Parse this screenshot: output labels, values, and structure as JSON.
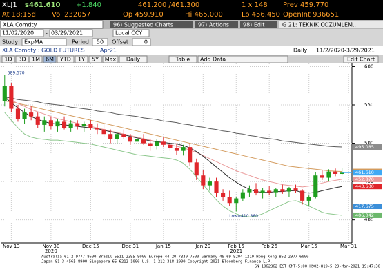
{
  "quote": {
    "ticker": "XLJ1",
    "last": "s461.610",
    "change": "+1.840",
    "bid_ask": "461.200 /461.300",
    "size": "1 x 148",
    "prev": "Prev 459.770",
    "time": "At 18:15d",
    "vol": "Vol 232057",
    "open": "Op 459.910",
    "high": "Hi 465.000",
    "low": "Lo 456.450",
    "open_interest": "OpenInt 936651"
  },
  "toolbar": {
    "security": "XLA Comdty",
    "suggested": "96) Suggested Charts",
    "actions": "97) Actions",
    "edit": "98) Edit",
    "window": "G 21: TEKNIK COZUMLEM..."
  },
  "range": {
    "start": "11/02/2020",
    "dash": "-",
    "end": "03/29/2021",
    "currency": "Local CCY"
  },
  "study": {
    "label": "Study",
    "name": "ExpMA",
    "period_label": "Period",
    "period": "50",
    "offset_label": "Offset",
    "offset": "0"
  },
  "chart_header": {
    "security": "XLA Comdty : GOLD FUTURES",
    "contract": "Apr21",
    "frequency": "Daily",
    "dates": "11/2/2020-3/29/2021"
  },
  "buttons": [
    "1D",
    "3D",
    "1M",
    "6M",
    "YTD",
    "1Y",
    "5Y",
    "Max",
    "Daily",
    "Table",
    "Add Data",
    "Edit Chart"
  ],
  "chart_data": {
    "type": "candlestick",
    "categories": [
      null,
      "Nov 13",
      null,
      null,
      null,
      null,
      null,
      "Nov 30",
      null,
      null,
      null,
      null,
      null,
      "Dec 15",
      null,
      null,
      null,
      null,
      null,
      "Dec 31",
      null,
      null,
      null,
      null,
      "Jan 15",
      null,
      null,
      null,
      null,
      null,
      "Jan 29",
      null,
      null,
      null,
      null,
      "Feb 15",
      null,
      null,
      null,
      null,
      "Feb 26",
      null,
      null,
      null,
      null,
      null,
      "Mar 15",
      null,
      null,
      null,
      null,
      null,
      "Mar 31"
    ],
    "years": [
      "2020",
      "2021"
    ],
    "open": [
      555,
      575,
      545,
      532,
      540,
      535,
      524,
      530,
      522,
      528,
      520,
      526,
      522,
      525,
      520,
      518,
      512,
      505,
      512,
      508,
      502,
      505,
      500,
      496,
      502,
      498,
      494,
      490,
      495,
      475,
      458,
      445,
      450,
      435,
      430,
      422,
      428,
      436,
      440,
      435,
      438,
      436,
      440,
      437,
      441,
      438,
      425,
      430,
      458,
      455,
      463,
      460,
      null
    ],
    "high": [
      589.57,
      578,
      550,
      545,
      548,
      540,
      535,
      534,
      532,
      535,
      530,
      530,
      528,
      530,
      526,
      525,
      518,
      515,
      518,
      512,
      510,
      512,
      506,
      505,
      508,
      504,
      500,
      498,
      500,
      480,
      465,
      455,
      455,
      440,
      438,
      430,
      440,
      445,
      448,
      442,
      444,
      442,
      446,
      443,
      446,
      440,
      432,
      462,
      465,
      466,
      467,
      468,
      null
    ],
    "low": [
      548,
      540,
      528,
      525,
      530,
      520,
      515,
      518,
      515,
      518,
      515,
      518,
      515,
      517,
      512,
      508,
      500,
      500,
      505,
      498,
      495,
      498,
      490,
      492,
      495,
      490,
      485,
      484,
      470,
      452,
      440,
      438,
      430,
      425,
      418,
      410.86,
      424,
      430,
      432,
      428,
      432,
      430,
      434,
      430,
      435,
      420,
      418,
      428,
      452,
      450,
      457,
      458,
      null
    ],
    "close": [
      575,
      545,
      532,
      540,
      535,
      524,
      530,
      522,
      528,
      520,
      526,
      522,
      525,
      520,
      518,
      512,
      505,
      512,
      508,
      502,
      505,
      500,
      496,
      502,
      498,
      494,
      490,
      495,
      475,
      458,
      445,
      450,
      435,
      430,
      422,
      428,
      436,
      440,
      435,
      438,
      436,
      440,
      437,
      441,
      438,
      425,
      430,
      458,
      455,
      463,
      460,
      461.61,
      null
    ],
    "up_color": "#1f9e1f",
    "down_color": "#e0262b",
    "series": [
      {
        "color": "#5a5a5a",
        "values": [
          560,
          559,
          557,
          556,
          555,
          554,
          552,
          551,
          550,
          549,
          547,
          546,
          545,
          544,
          542,
          541,
          540,
          538,
          537,
          536,
          535,
          533,
          532,
          531,
          529,
          528,
          527,
          525,
          524,
          522,
          521,
          519,
          518,
          516,
          515,
          513,
          512,
          510,
          509,
          507,
          506,
          505,
          503,
          502,
          501,
          500,
          499,
          498,
          497,
          496,
          495.5,
          495.085,
          null
        ]
      },
      {
        "color": "#d39a5c",
        "values": [
          555,
          554,
          552,
          550,
          548,
          546,
          544,
          542,
          540,
          538,
          536,
          534,
          532,
          530,
          528,
          526,
          524,
          522,
          520,
          518,
          516,
          514,
          512,
          510,
          508,
          506,
          504,
          502,
          500,
          498,
          496,
          494,
          492,
          490,
          488,
          486,
          484,
          482,
          480,
          478,
          476,
          474,
          472,
          470,
          469,
          468,
          467,
          466,
          465,
          464,
          463.5,
          463.1,
          null
        ]
      },
      {
        "color": "#ea9a9a",
        "values": [
          560,
          556,
          552,
          548,
          544,
          541,
          538,
          535,
          532,
          530,
          528,
          526,
          524,
          522,
          520,
          518,
          516,
          514,
          512,
          510,
          508,
          506,
          504,
          502,
          500,
          498,
          496,
          494,
          491,
          488,
          484,
          480,
          476,
          472,
          468,
          464,
          461,
          458,
          455,
          452,
          450,
          448,
          446,
          445,
          444,
          443,
          444,
          446,
          448,
          450,
          451.5,
          452.87,
          null
        ]
      },
      {
        "color": "#2b2b2b",
        "values": [
          560,
          553,
          546,
          540,
          535,
          531,
          528,
          526,
          525,
          524,
          523,
          522,
          521,
          520,
          519,
          517,
          515,
          513,
          511,
          509,
          507,
          505,
          503,
          502,
          501,
          500,
          499,
          497,
          494,
          489,
          483,
          476,
          469,
          462,
          455,
          449,
          444,
          440,
          437,
          436,
          436,
          437,
          437,
          438,
          438,
          436,
          435,
          436,
          438,
          440,
          442,
          443.63,
          null
        ]
      },
      {
        "color": "#8cc78c",
        "values": [
          540,
          530,
          520,
          512,
          508,
          506,
          505,
          504,
          504,
          503,
          502,
          501,
          500,
          499,
          497,
          495,
          493,
          491,
          489,
          487,
          485,
          484,
          483,
          482,
          481,
          480,
          478,
          474,
          466,
          456,
          446,
          436,
          426,
          418,
          412,
          408,
          405,
          404,
          405,
          408,
          412,
          416,
          420,
          424,
          425,
          422,
          418,
          414,
          410,
          408,
          407,
          406.042,
          null
        ]
      }
    ],
    "ylim": [
      370,
      604
    ],
    "yticks": [
      400,
      450,
      500,
      550,
      600
    ],
    "grid": true,
    "high_label": {
      "value": 589.57,
      "label": "589.570"
    },
    "low_label": "Low=410.860",
    "price_labels": [
      {
        "value": 495.085,
        "label": "495.085",
        "color": "#8c8c8c"
      },
      {
        "value": 463.1,
        "label": "463.100",
        "color": "#d39a5c"
      },
      {
        "value": 461.61,
        "label": "461.610",
        "color": "#3fa9f5"
      },
      {
        "value": 452.87,
        "label": "452.870",
        "color": "#ea9a9a"
      },
      {
        "value": 443.63,
        "label": "443.630",
        "color": "#e0262b"
      },
      {
        "value": 417.675,
        "label": "417.675",
        "color": "#3b8fd9"
      },
      {
        "value": 406.042,
        "label": "406.042",
        "color": "#6cb86c"
      }
    ]
  },
  "footer": [
    "Australia 61 2 9777 8600 Brazil 5511 2395 9000 Europe 44 20 7330 7500 Germany 49 69 9204 1210 Hong Kong 852 2977 6000",
    "Japan 81 3 4565 8900     Singapore 65 6212 1000     U.S. 1 212 318 2000     Copyright 2021 Bloomberg Finance L.P.",
    "SN 1062862 EST  GMT-5:00 H902-819-5 29-Mar-2021 19:47:30"
  ]
}
